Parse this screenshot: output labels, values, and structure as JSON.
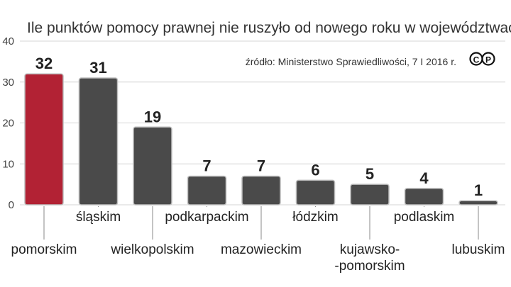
{
  "chart_data": {
    "type": "bar",
    "title": "Ile punktów pomocy prawnej nie ruszyło od nowego roku w województwach",
    "source": "źródło: Ministerstwo Sprawiedliwości, 7 I 2016 r.",
    "logo": "CP",
    "categories": [
      "pomorskim",
      "śląskim",
      "wielkopolskim",
      "podkarpackim",
      "mazowieckim",
      "łódzkim",
      [
        "kujawsko-",
        "-pomorskim"
      ],
      "podlaskim",
      "lubuskim"
    ],
    "values": [
      32,
      31,
      19,
      7,
      7,
      6,
      5,
      4,
      1
    ],
    "value_labels": [
      "32",
      "31",
      "19",
      "7",
      "7",
      "6",
      "5",
      "4",
      "1"
    ],
    "yticks": [
      "0",
      "10",
      "20",
      "30",
      "40"
    ],
    "ylim": [
      0,
      40
    ],
    "grid": true,
    "colors": {
      "highlight": "#b22234",
      "bar": "#4a4a4a",
      "grid": "#d4d4d4",
      "leader": "#888888"
    },
    "highlight_index": 0
  }
}
